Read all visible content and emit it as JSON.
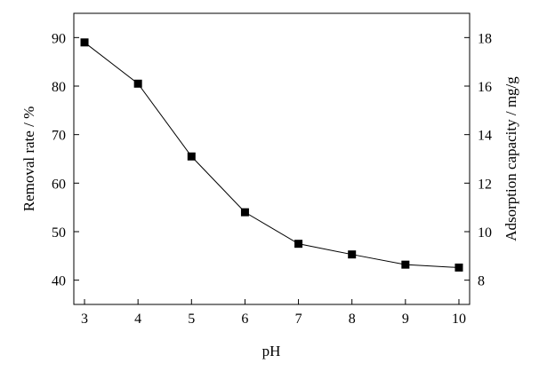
{
  "chart_data": {
    "type": "line",
    "title": "",
    "xlabel": "pH",
    "ylabel": "Removal rate / %",
    "y2label": "Adsorption capacity / mg/g",
    "xlim": [
      2.8,
      10.2
    ],
    "ylim": [
      35,
      95
    ],
    "y2lim": [
      7,
      19
    ],
    "xticks": [
      3,
      4,
      5,
      6,
      7,
      8,
      9,
      10
    ],
    "yticks": [
      40,
      50,
      60,
      70,
      80,
      90
    ],
    "y2ticks": [
      8,
      10,
      12,
      14,
      16,
      18
    ],
    "grid": false,
    "legend": "none",
    "marker": "square",
    "line_color": "#000000",
    "x": [
      3,
      4,
      5,
      6,
      7,
      8,
      9,
      10
    ],
    "series": [
      {
        "values": [
          89.0,
          80.5,
          65.5,
          54.0,
          47.5,
          45.3,
          43.2,
          42.6
        ]
      }
    ]
  }
}
